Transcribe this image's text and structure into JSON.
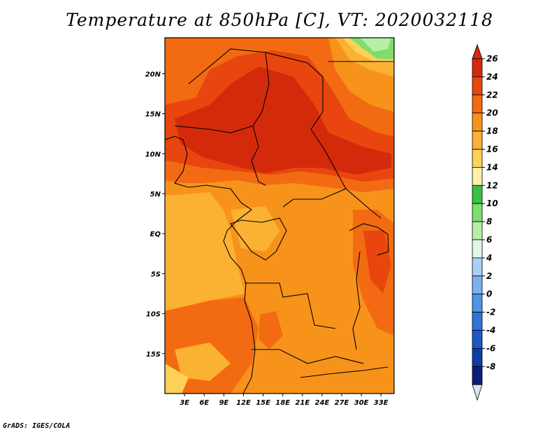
{
  "map": {
    "title": "Temperature at 850hPa [C], VT: 2020032118",
    "credit": "GrADS: IGES/COLA",
    "lat_ticks": [
      {
        "label": "20N",
        "value": 20
      },
      {
        "label": "15N",
        "value": 15
      },
      {
        "label": "10N",
        "value": 10
      },
      {
        "label": "5N",
        "value": 5
      },
      {
        "label": "EQ",
        "value": 0
      },
      {
        "label": "5S",
        "value": -5
      },
      {
        "label": "10S",
        "value": -10
      },
      {
        "label": "15S",
        "value": -15
      }
    ],
    "lon_ticks": [
      {
        "label": "3E",
        "value": 3
      },
      {
        "label": "6E",
        "value": 6
      },
      {
        "label": "9E",
        "value": 9
      },
      {
        "label": "12E",
        "value": 12
      },
      {
        "label": "15E",
        "value": 15
      },
      {
        "label": "18E",
        "value": 18
      },
      {
        "label": "21E",
        "value": 21
      },
      {
        "label": "24E",
        "value": 24
      },
      {
        "label": "27E",
        "value": 27
      },
      {
        "label": "30E",
        "value": 30
      },
      {
        "label": "33E",
        "value": 33
      }
    ],
    "lat_range": [
      -20,
      24.5
    ],
    "lon_range": [
      0,
      35
    ]
  },
  "colorbar": {
    "levels": [
      "26",
      "24",
      "22",
      "20",
      "18",
      "16",
      "14",
      "12",
      "10",
      "8",
      "6",
      "4",
      "2",
      "0",
      "-2",
      "-4",
      "-6",
      "-8"
    ],
    "colors": [
      "#d42a0c",
      "#e8460e",
      "#f26b12",
      "#f7931a",
      "#fbb132",
      "#fdd058",
      "#fff0a6",
      "#38c243",
      "#7dde6a",
      "#b6efa6",
      "#e2f7e2",
      "#a9d0f2",
      "#7ab1ee",
      "#4f95e8",
      "#2f74d8",
      "#1b58c4",
      "#0f3da6",
      "#0a1f7a"
    ],
    "top_color": "#d42a0c",
    "bottom_color": "#dbe3f5"
  }
}
